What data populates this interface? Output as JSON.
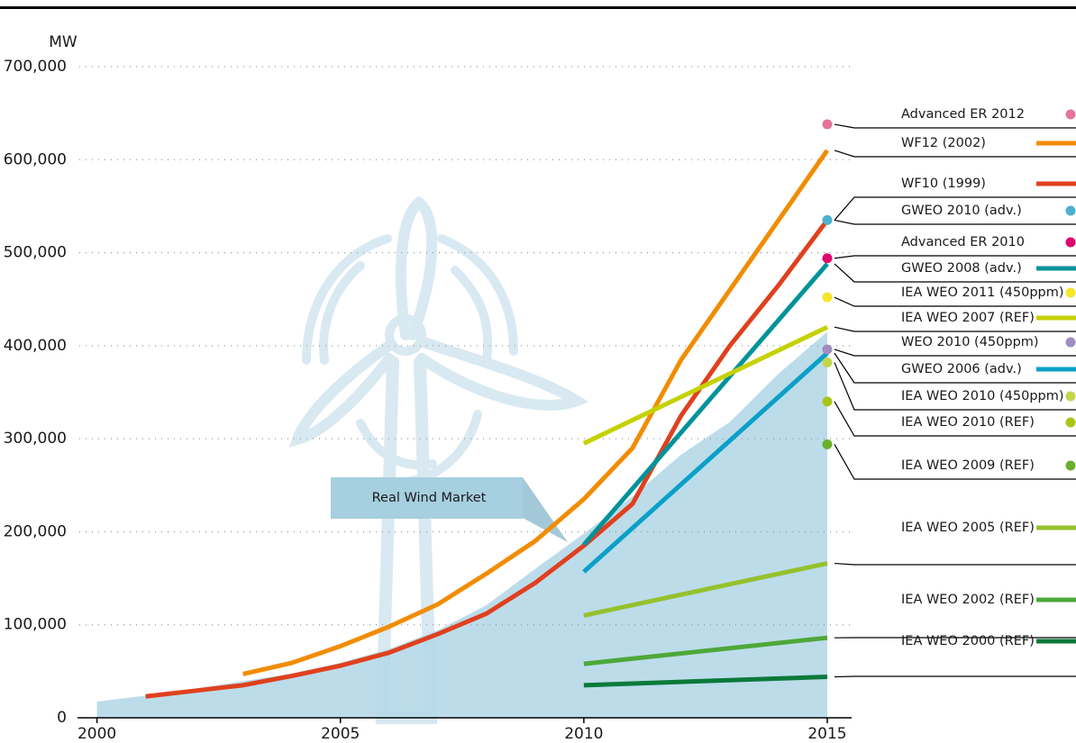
{
  "chart_data": {
    "type": "line",
    "y_label": "MW",
    "xlim": [
      1999.6,
      2015.5
    ],
    "xticks": [
      2000,
      2005,
      2010,
      2015
    ],
    "ylim": [
      0,
      700000
    ],
    "yticks": [
      {
        "value": 0,
        "label": "0"
      },
      {
        "value": 100000,
        "label": "100,000"
      },
      {
        "value": 200000,
        "label": "200,000"
      },
      {
        "value": 300000,
        "label": "300,000"
      },
      {
        "value": 400000,
        "label": "400,000"
      },
      {
        "value": 500000,
        "label": "500,000"
      },
      {
        "value": 600000,
        "label": "600,000"
      },
      {
        "value": 700000,
        "label": "700,000"
      }
    ],
    "grid": true,
    "area": {
      "name": "Real Wind Market",
      "color": "#b5d8e8",
      "x": [
        2000,
        2001,
        2002,
        2003,
        2004,
        2005,
        2006,
        2007,
        2008,
        2009,
        2010,
        2011,
        2012,
        2013,
        2014,
        2015
      ],
      "values": [
        17400,
        23900,
        31100,
        39400,
        47600,
        59100,
        74000,
        94000,
        121000,
        160000,
        198000,
        238000,
        283000,
        318000,
        370000,
        415000
      ]
    },
    "series": [
      {
        "name": "Advanced ER 2012",
        "color": "#e8739a",
        "kind": "point",
        "x": [
          2015
        ],
        "values": [
          638000
        ]
      },
      {
        "name": "WF12 (2002)",
        "color": "#f28c00",
        "kind": "line",
        "x": [
          2003,
          2004,
          2005,
          2006,
          2007,
          2008,
          2009,
          2010,
          2011,
          2012,
          2013,
          2014,
          2015
        ],
        "values": [
          47000,
          59000,
          77000,
          98000,
          122000,
          155000,
          190000,
          235000,
          290000,
          385000,
          460000,
          535000,
          610000
        ]
      },
      {
        "name": "WF10 (1999)",
        "color": "#e0401e",
        "kind": "line",
        "x": [
          2001,
          2002,
          2003,
          2004,
          2005,
          2006,
          2007,
          2008,
          2009,
          2010,
          2011,
          2012,
          2013,
          2014,
          2015
        ],
        "values": [
          23000,
          29000,
          35000,
          45000,
          56000,
          70000,
          90000,
          112000,
          145000,
          185000,
          230000,
          325000,
          400000,
          465000,
          535000
        ]
      },
      {
        "name": "GWEO 2010 (adv.)",
        "color": "#4bb1cf",
        "kind": "point",
        "x": [
          2015
        ],
        "values": [
          535000
        ]
      },
      {
        "name": "Advanced ER 2010",
        "color": "#e0086b",
        "kind": "point",
        "x": [
          2015
        ],
        "values": [
          494000
        ]
      },
      {
        "name": "GWEO 2008 (adv.)",
        "color": "#00929a",
        "kind": "line",
        "x": [
          2010,
          2015
        ],
        "values": [
          186000,
          488000
        ]
      },
      {
        "name": "IEA WEO 2011 (450ppm)",
        "color": "#f4e62a",
        "kind": "point",
        "x": [
          2015
        ],
        "values": [
          452000
        ]
      },
      {
        "name": "IEA WEO 2007 (REF)",
        "color": "#c5d100",
        "kind": "line",
        "x": [
          2010,
          2015
        ],
        "values": [
          295000,
          420000
        ]
      },
      {
        "name": "WEO 2010 (450ppm)",
        "color": "#a08cc0",
        "kind": "point",
        "x": [
          2015
        ],
        "values": [
          396000
        ]
      },
      {
        "name": "GWEO 2006 (adv.)",
        "color": "#0aa0c8",
        "kind": "line",
        "x": [
          2010,
          2015
        ],
        "values": [
          157000,
          392000
        ]
      },
      {
        "name": "IEA WEO 2010 (450ppm)",
        "color": "#c4d64a",
        "kind": "point",
        "x": [
          2015
        ],
        "values": [
          382000
        ]
      },
      {
        "name": "IEA WEO 2010 (REF)",
        "color": "#a8c617",
        "kind": "point",
        "x": [
          2015
        ],
        "values": [
          340000
        ]
      },
      {
        "name": "IEA WEO 2009 (REF)",
        "color": "#6ab02c",
        "kind": "point",
        "x": [
          2015
        ],
        "values": [
          294000
        ]
      },
      {
        "name": "IEA WEO 2005 (REF)",
        "color": "#95c12c",
        "kind": "line",
        "x": [
          2010,
          2015
        ],
        "values": [
          110000,
          166000
        ]
      },
      {
        "name": "IEA WEO 2002 (REF)",
        "color": "#4ea839",
        "kind": "line",
        "x": [
          2010,
          2015
        ],
        "values": [
          58000,
          86000
        ]
      },
      {
        "name": "IEA WEO 2000 (REF)",
        "color": "#0c7a3a",
        "kind": "line",
        "x": [
          2010,
          2015
        ],
        "values": [
          35000,
          44000
        ]
      }
    ]
  }
}
